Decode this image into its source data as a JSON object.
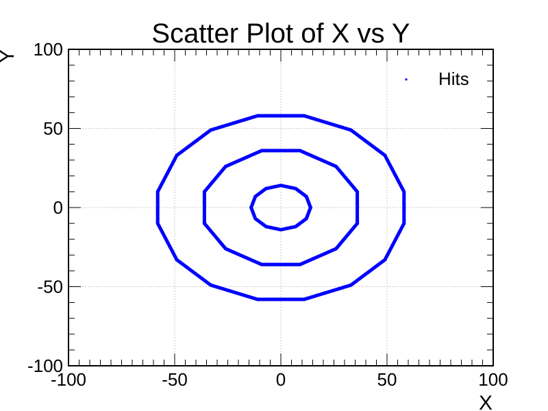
{
  "chart_data": {
    "type": "scatter",
    "title": "Scatter Plot of X vs Y",
    "xlabel": "X",
    "ylabel": "Y",
    "xlim": [
      -100,
      100
    ],
    "ylim": [
      -100,
      100
    ],
    "xticks": [
      -100,
      -50,
      0,
      50,
      100
    ],
    "yticks": [
      -100,
      -50,
      0,
      50,
      100
    ],
    "xtick_labels": [
      "-100",
      "-50",
      "0",
      "50",
      "100"
    ],
    "ytick_labels": [
      "-100",
      "-50",
      "0",
      "50",
      "100"
    ],
    "grid": true,
    "legend_position": "top-right",
    "series": [
      {
        "name": "Hits",
        "color": "#0000ff",
        "marker": "dot",
        "rings": [
          {
            "radius": 14,
            "vertices": [
              [
                -14,
                0
              ],
              [
                -12,
                7
              ],
              [
                -7,
                12
              ],
              [
                0,
                14
              ],
              [
                7,
                12
              ],
              [
                12,
                7
              ],
              [
                14,
                0
              ],
              [
                12,
                -7
              ],
              [
                7,
                -12
              ],
              [
                0,
                -14
              ],
              [
                -7,
                -12
              ],
              [
                -12,
                -7
              ]
            ]
          },
          {
            "radius": 36,
            "vertices": [
              [
                -36,
                10
              ],
              [
                -26,
                26
              ],
              [
                -9,
                36
              ],
              [
                9,
                36
              ],
              [
                26,
                26
              ],
              [
                36,
                10
              ],
              [
                36,
                -10
              ],
              [
                26,
                -26
              ],
              [
                9,
                -36
              ],
              [
                -9,
                -36
              ],
              [
                -26,
                -26
              ],
              [
                -36,
                -10
              ]
            ]
          },
          {
            "radius": 58,
            "vertices": [
              [
                -58,
                10
              ],
              [
                -49,
                33
              ],
              [
                -33,
                49
              ],
              [
                -11,
                58
              ],
              [
                11,
                58
              ],
              [
                33,
                49
              ],
              [
                49,
                33
              ],
              [
                58,
                10
              ],
              [
                58,
                -10
              ],
              [
                49,
                -33
              ],
              [
                33,
                -49
              ],
              [
                11,
                -58
              ],
              [
                -11,
                -58
              ],
              [
                -33,
                -49
              ],
              [
                -49,
                -33
              ],
              [
                -58,
                -10
              ]
            ]
          }
        ]
      }
    ]
  }
}
